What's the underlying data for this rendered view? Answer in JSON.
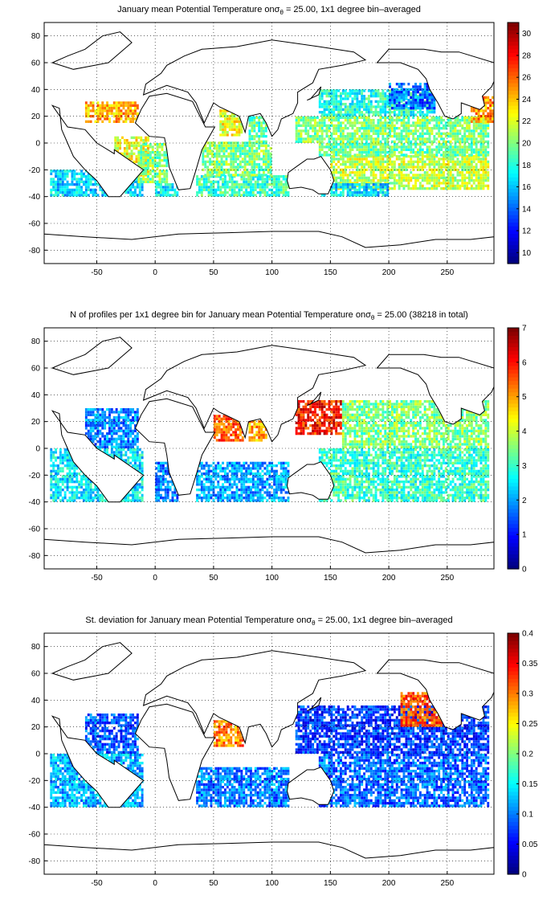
{
  "colors": {
    "land_outline": "#000000",
    "grid": "#000000",
    "colormap": "jet",
    "ocean_empty": "#ffffff"
  },
  "chart_data": [
    {
      "type": "heatmap",
      "title_main": "January mean Potential Temperature on",
      "title_sigma": "σ",
      "title_sub": "θ",
      "title_rest": " = 25.00, 1x1 degree bin–averaged",
      "xlim": [
        -95,
        290
      ],
      "ylim": [
        -90,
        90
      ],
      "xticks": [
        -50,
        0,
        50,
        100,
        150,
        200,
        250
      ],
      "yticks": [
        -80,
        -60,
        -40,
        -20,
        0,
        20,
        40,
        60,
        80
      ],
      "grid": true,
      "colorbar": {
        "min": 9,
        "max": 31,
        "ticks": [
          10,
          12,
          14,
          16,
          18,
          20,
          22,
          24,
          26,
          28,
          30
        ]
      },
      "regions": [
        {
          "x": [
            -90,
            -10
          ],
          "y": [
            -40,
            -20
          ],
          "value": 16.5
        },
        {
          "x": [
            -60,
            -15
          ],
          "y": [
            15,
            30
          ],
          "value": 24.5
        },
        {
          "x": [
            -35,
            -5
          ],
          "y": [
            -25,
            5
          ],
          "value": 22.5
        },
        {
          "x": [
            -15,
            10
          ],
          "y": [
            -30,
            0
          ],
          "value": 20
        },
        {
          "x": [
            0,
            20
          ],
          "y": [
            -40,
            -30
          ],
          "value": 17
        },
        {
          "x": [
            35,
            115
          ],
          "y": [
            -40,
            -25
          ],
          "value": 18.5
        },
        {
          "x": [
            40,
            100
          ],
          "y": [
            -25,
            0
          ],
          "value": 20
        },
        {
          "x": [
            55,
            75
          ],
          "y": [
            5,
            25
          ],
          "value": 22.5
        },
        {
          "x": [
            80,
            95
          ],
          "y": [
            0,
            20
          ],
          "value": 19
        },
        {
          "x": [
            140,
            240
          ],
          "y": [
            20,
            40
          ],
          "value": 18
        },
        {
          "x": [
            120,
            285
          ],
          "y": [
            0,
            20
          ],
          "value": 20
        },
        {
          "x": [
            150,
            285
          ],
          "y": [
            -35,
            -10
          ],
          "value": 21.5
        },
        {
          "x": [
            140,
            285
          ],
          "y": [
            -10,
            0
          ],
          "value": 19.5
        },
        {
          "x": [
            200,
            240
          ],
          "y": [
            25,
            45
          ],
          "value": 14
        },
        {
          "x": [
            140,
            200
          ],
          "y": [
            -40,
            -30
          ],
          "value": 16.5
        },
        {
          "x": [
            270,
            290
          ],
          "y": [
            15,
            35
          ],
          "value": 25
        }
      ]
    },
    {
      "type": "heatmap",
      "title_main": "N of profiles per 1x1 degree bin for January mean Potential Temperature on",
      "title_sigma": "σ",
      "title_sub": "θ",
      "title_rest": " = 25.00 (38218 in total)",
      "xlim": [
        -95,
        290
      ],
      "ylim": [
        -90,
        90
      ],
      "xticks": [
        -50,
        0,
        50,
        100,
        150,
        200,
        250
      ],
      "yticks": [
        -80,
        -60,
        -40,
        -20,
        0,
        20,
        40,
        60,
        80
      ],
      "grid": true,
      "colorbar": {
        "min": 0,
        "max": 7,
        "ticks": [
          0,
          1,
          2,
          3,
          4,
          5,
          6,
          7
        ]
      },
      "regions": [
        {
          "x": [
            -90,
            -10
          ],
          "y": [
            -40,
            0
          ],
          "value": 2.5
        },
        {
          "x": [
            -60,
            -15
          ],
          "y": [
            0,
            30
          ],
          "value": 1.8
        },
        {
          "x": [
            0,
            20
          ],
          "y": [
            -40,
            -10
          ],
          "value": 1.8
        },
        {
          "x": [
            35,
            115
          ],
          "y": [
            -40,
            -10
          ],
          "value": 2
        },
        {
          "x": [
            50,
            75
          ],
          "y": [
            5,
            25
          ],
          "value": 5.5
        },
        {
          "x": [
            80,
            95
          ],
          "y": [
            5,
            20
          ],
          "value": 5
        },
        {
          "x": [
            120,
            160
          ],
          "y": [
            10,
            35
          ],
          "value": 6
        },
        {
          "x": [
            160,
            285
          ],
          "y": [
            0,
            35
          ],
          "value": 3.5
        },
        {
          "x": [
            140,
            285
          ],
          "y": [
            -40,
            0
          ],
          "value": 3
        }
      ]
    },
    {
      "type": "heatmap",
      "title_main": "St. deviation for January mean Potential Temperature on",
      "title_sigma": "σ",
      "title_sub": "θ",
      "title_rest": " = 25.00, 1x1 degree bin–averaged",
      "xlim": [
        -95,
        290
      ],
      "ylim": [
        -90,
        90
      ],
      "xticks": [
        -50,
        0,
        50,
        100,
        150,
        200,
        250
      ],
      "yticks": [
        -80,
        -60,
        -40,
        -20,
        0,
        20,
        40,
        60,
        80
      ],
      "grid": true,
      "colorbar": {
        "min": 0,
        "max": 0.4,
        "ticks": [
          0,
          0.05,
          0.1,
          0.15,
          0.2,
          0.25,
          0.3,
          0.35,
          0.4
        ]
      },
      "regions": [
        {
          "x": [
            -90,
            -10
          ],
          "y": [
            -40,
            0
          ],
          "value": 0.12
        },
        {
          "x": [
            -60,
            -15
          ],
          "y": [
            0,
            30
          ],
          "value": 0.08
        },
        {
          "x": [
            35,
            115
          ],
          "y": [
            -40,
            -10
          ],
          "value": 0.1
        },
        {
          "x": [
            50,
            75
          ],
          "y": [
            5,
            25
          ],
          "value": 0.3
        },
        {
          "x": [
            120,
            285
          ],
          "y": [
            0,
            35
          ],
          "value": 0.07
        },
        {
          "x": [
            210,
            245
          ],
          "y": [
            20,
            45
          ],
          "value": 0.32
        },
        {
          "x": [
            140,
            285
          ],
          "y": [
            -40,
            0
          ],
          "value": 0.09
        }
      ]
    }
  ]
}
